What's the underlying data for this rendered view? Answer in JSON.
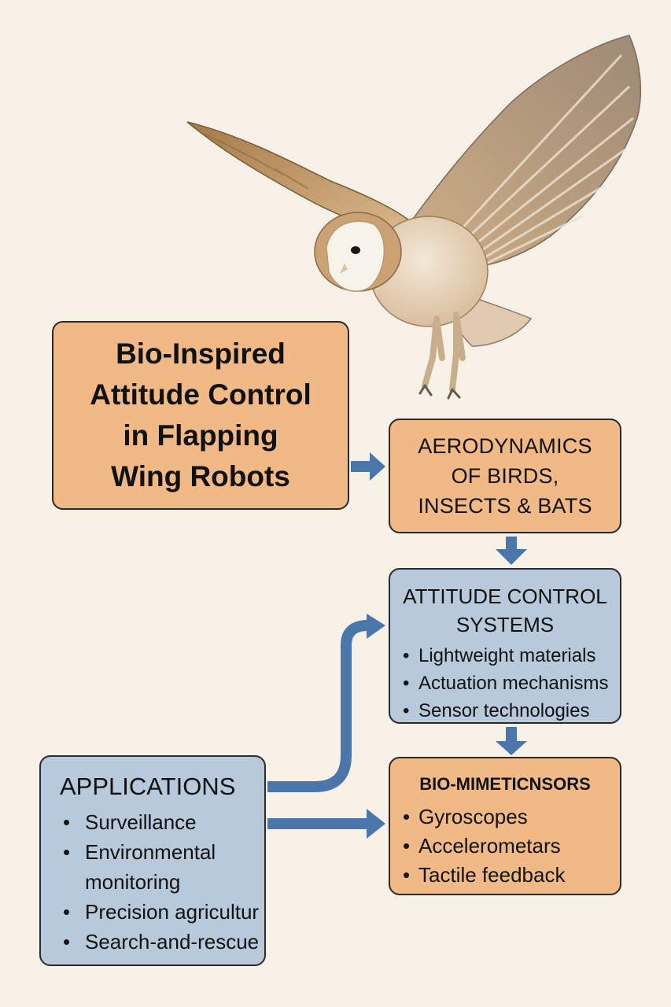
{
  "title": {
    "lines": [
      "Bio-Inspired",
      "Attitude Control",
      "in Flapping",
      "Wing Robots"
    ]
  },
  "aerodynamics": {
    "lines": [
      "AERODYNAMICS",
      "OF BIRDS,",
      "INSECTS & BATS"
    ]
  },
  "attitude_control": {
    "title_lines": [
      "ATTITUDE CONTROL",
      "SYSTEMS"
    ],
    "items": [
      "Lightweight materials",
      "Actuation mechanisms",
      "Sensor technologies"
    ]
  },
  "bio_mimetic": {
    "title": "BIO-MIMETICNSORS",
    "items": [
      "Gyroscopes",
      "Accelerometars",
      "Tactile feedback"
    ]
  },
  "applications": {
    "title": "APPLICATIONS",
    "items": [
      "Surveillance",
      "Environmental monitoring",
      "Precision agricultur",
      "Search-and-rescue"
    ]
  },
  "colors": {
    "orange_box": "#f1b985",
    "blue_box": "#b9c9dc",
    "arrow": "#4a76ab",
    "background": "#f8f1e8"
  },
  "illustration": {
    "icon": "barn-owl-icon"
  }
}
